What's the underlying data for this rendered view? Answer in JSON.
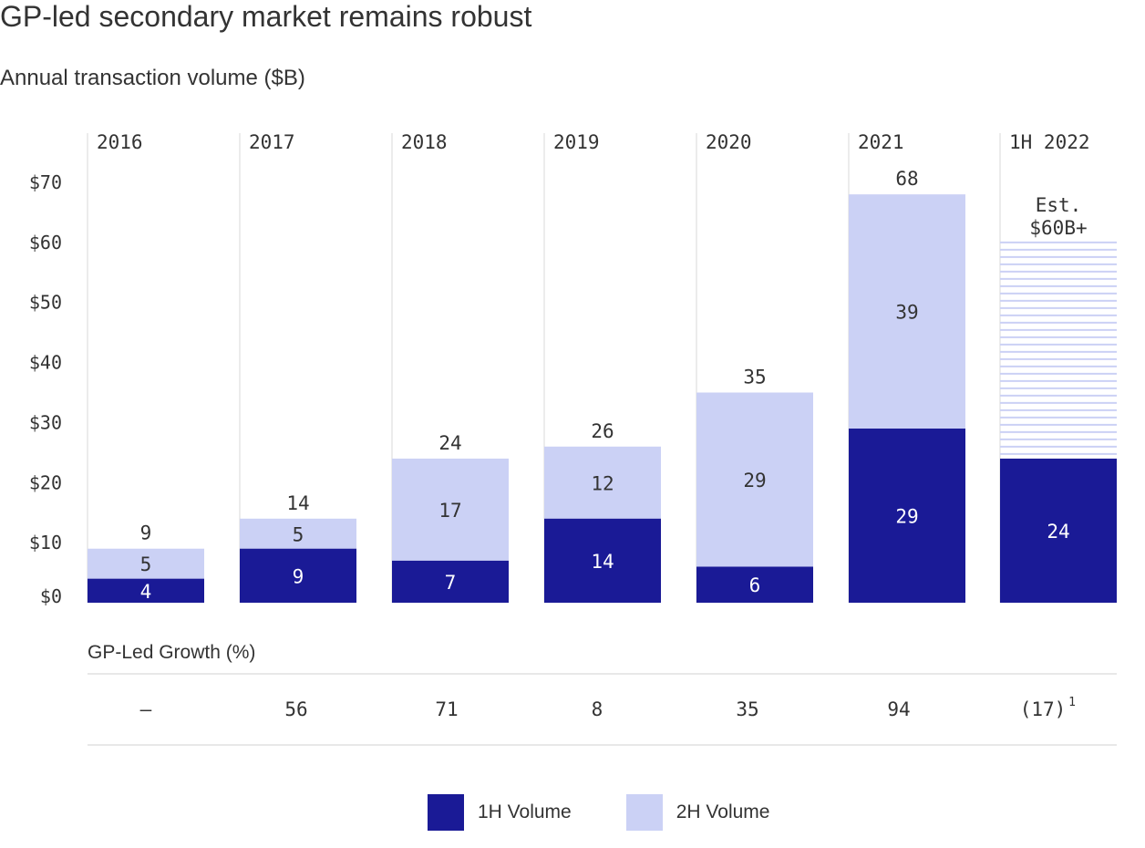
{
  "chart_data": {
    "type": "bar",
    "stacked": true,
    "title": "GP-led secondary market remains robust",
    "subtitle": "Annual transaction volume ($B)",
    "categories": [
      "2016",
      "2017",
      "2018",
      "2019",
      "2020",
      "2021",
      "1H 2022"
    ],
    "series": [
      {
        "name": "1H Volume",
        "values": [
          4,
          9,
          7,
          14,
          6,
          29,
          24
        ],
        "color": "#1a1a96"
      },
      {
        "name": "2H Volume",
        "values": [
          5,
          5,
          17,
          12,
          29,
          39,
          null
        ],
        "color": "#cbd1f5"
      }
    ],
    "totals": [
      "9",
      "14",
      "24",
      "26",
      "35",
      "68",
      null
    ],
    "estimate": {
      "category": "1H 2022",
      "value": 60,
      "label_line1": "Est.",
      "label_line2": "$60B+",
      "color": "#cbd1f5"
    },
    "yticks": [
      "$0",
      "$10",
      "$20",
      "$30",
      "$40",
      "$50",
      "$60",
      "$70"
    ],
    "ylim": [
      0,
      70
    ],
    "growth": {
      "label": "GP-Led Growth (%)",
      "values": [
        "–",
        "56",
        "71",
        "8",
        "35",
        "94",
        "(17)"
      ],
      "footnote": "1"
    },
    "legend": [
      "1H Volume",
      "2H Volume"
    ]
  }
}
